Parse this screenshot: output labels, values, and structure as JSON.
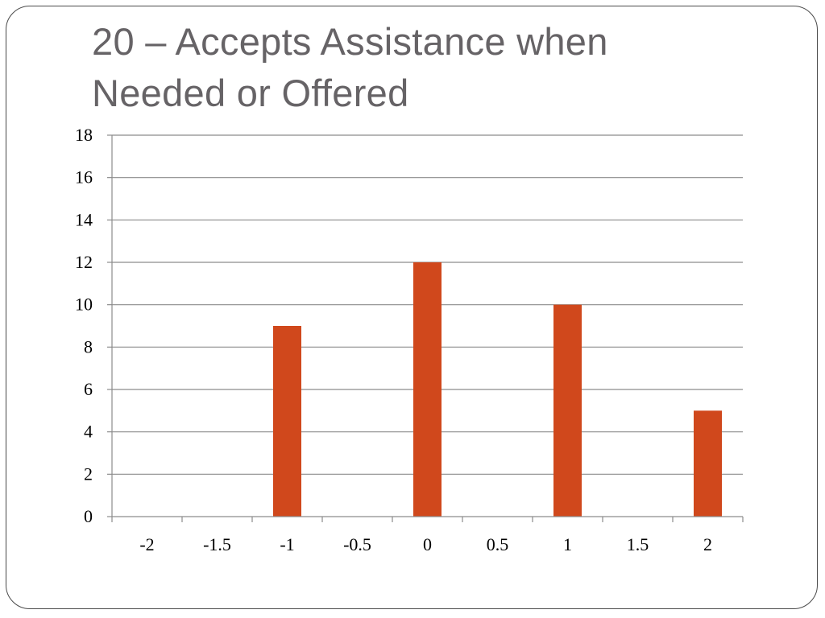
{
  "slide": {
    "title_line1": "20 – Accepts Assistance when",
    "title_line2": "Needed or Offered"
  },
  "chart_data": {
    "type": "bar",
    "title": "20 – Accepts Assistance when Needed or Offered",
    "xlabel": "",
    "ylabel": "",
    "categories": [
      "-2",
      "-1.5",
      "-1",
      "-0.5",
      "0",
      "0.5",
      "1",
      "1.5",
      "2"
    ],
    "values": [
      0,
      0,
      9,
      0,
      12,
      0,
      10,
      0,
      5
    ],
    "ylim": [
      0,
      18
    ],
    "yticks": [
      0,
      2,
      4,
      6,
      8,
      10,
      12,
      14,
      16,
      18
    ],
    "grid": true,
    "legend": "none",
    "bar_color": "#d0481c"
  }
}
